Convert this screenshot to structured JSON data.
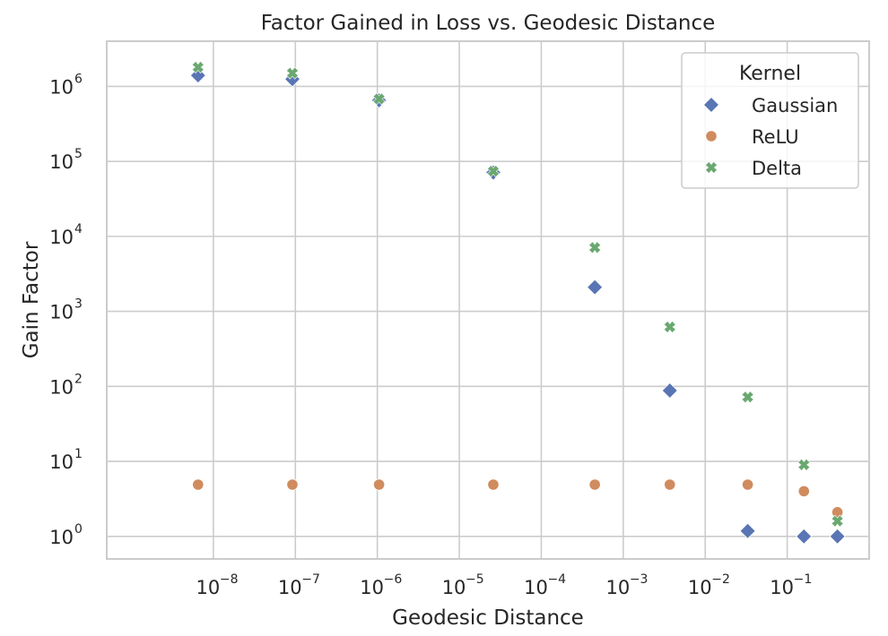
{
  "chart_data": {
    "type": "scatter",
    "title": "Factor Gained in Loss vs. Geodesic Distance",
    "xlabel": "Geodesic Distance",
    "ylabel": "Gain Factor",
    "xscale": "log",
    "yscale": "log",
    "xlim": [
      5e-10,
      1.0
    ],
    "ylim": [
      0.5,
      4000000
    ],
    "grid": true,
    "x_ticks": [
      {
        "base": "10",
        "exp": "−8",
        "value": 1e-08
      },
      {
        "base": "10",
        "exp": "−7",
        "value": 1e-07
      },
      {
        "base": "10",
        "exp": "−6",
        "value": 1e-06
      },
      {
        "base": "10",
        "exp": "−5",
        "value": 1e-05
      },
      {
        "base": "10",
        "exp": "−4",
        "value": 0.0001
      },
      {
        "base": "10",
        "exp": "−3",
        "value": 0.001
      },
      {
        "base": "10",
        "exp": "−2",
        "value": 0.01
      },
      {
        "base": "10",
        "exp": "−1",
        "value": 0.1
      }
    ],
    "y_ticks": [
      {
        "base": "10",
        "exp": "0",
        "value": 1
      },
      {
        "base": "10",
        "exp": "1",
        "value": 10
      },
      {
        "base": "10",
        "exp": "2",
        "value": 100
      },
      {
        "base": "10",
        "exp": "3",
        "value": 1000
      },
      {
        "base": "10",
        "exp": "4",
        "value": 10000
      },
      {
        "base": "10",
        "exp": "5",
        "value": 100000
      },
      {
        "base": "10",
        "exp": "6",
        "value": 1000000
      }
    ],
    "legend": {
      "title": "Kernel",
      "placement": "top-right"
    },
    "series": [
      {
        "name": "Gaussian",
        "marker": "diamond",
        "color": "#5975b4",
        "points": [
          {
            "x": 6.5e-09,
            "y": 1400000
          },
          {
            "x": 9.2e-08,
            "y": 1250000
          },
          {
            "x": 1.05e-06,
            "y": 650000
          },
          {
            "x": 2.6e-05,
            "y": 71000
          },
          {
            "x": 0.00045,
            "y": 2100
          },
          {
            "x": 0.0037,
            "y": 88
          },
          {
            "x": 0.033,
            "y": 1.18
          },
          {
            "x": 0.16,
            "y": 1.0
          },
          {
            "x": 0.41,
            "y": 1.0
          }
        ]
      },
      {
        "name": "ReLU",
        "marker": "circle",
        "color": "#d08b5e",
        "points": [
          {
            "x": 6.5e-09,
            "y": 4.9
          },
          {
            "x": 9.2e-08,
            "y": 4.9
          },
          {
            "x": 1.05e-06,
            "y": 4.9
          },
          {
            "x": 2.6e-05,
            "y": 4.9
          },
          {
            "x": 0.00045,
            "y": 4.9
          },
          {
            "x": 0.0037,
            "y": 4.9
          },
          {
            "x": 0.033,
            "y": 4.9
          },
          {
            "x": 0.16,
            "y": 4.0
          },
          {
            "x": 0.41,
            "y": 2.1
          }
        ]
      },
      {
        "name": "Delta",
        "marker": "x",
        "color": "#6aa870",
        "points": [
          {
            "x": 6.5e-09,
            "y": 1800000
          },
          {
            "x": 9.2e-08,
            "y": 1500000
          },
          {
            "x": 1.05e-06,
            "y": 680000
          },
          {
            "x": 2.6e-05,
            "y": 74000
          },
          {
            "x": 0.00045,
            "y": 7100
          },
          {
            "x": 0.0037,
            "y": 620
          },
          {
            "x": 0.033,
            "y": 72
          },
          {
            "x": 0.16,
            "y": 9.0
          },
          {
            "x": 0.41,
            "y": 1.6
          }
        ]
      }
    ]
  }
}
